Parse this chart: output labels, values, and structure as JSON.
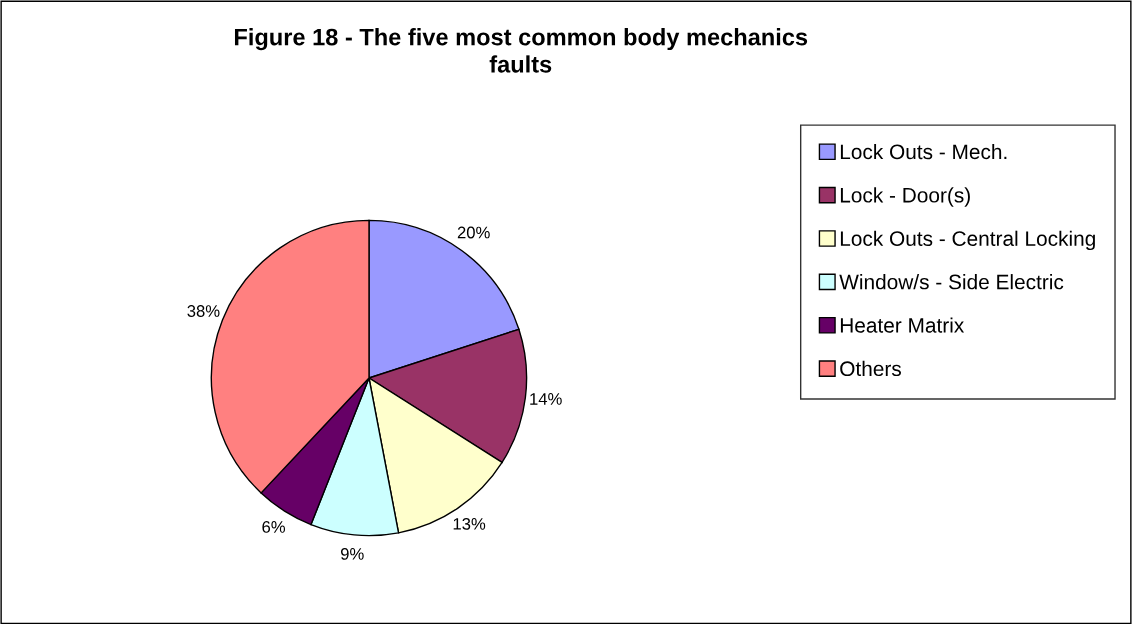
{
  "chart_data": {
    "type": "pie",
    "title": "Figure 18 - The five most common body mechanics\nfaults",
    "categories": [
      "Lock Outs - Mech.",
      "Lock - Door(s)",
      "Lock Outs - Central Locking",
      "Window/s - Side Electric",
      "Heater Matrix",
      "Others"
    ],
    "values": [
      20,
      14,
      13,
      9,
      6,
      38
    ],
    "colors": [
      "#9999ff",
      "#993366",
      "#ffffcc",
      "#ccffff",
      "#660066",
      "#ff8080"
    ],
    "value_labels": [
      "20%",
      "14%",
      "13%",
      "9%",
      "6%",
      "38%"
    ],
    "legend": "right"
  }
}
